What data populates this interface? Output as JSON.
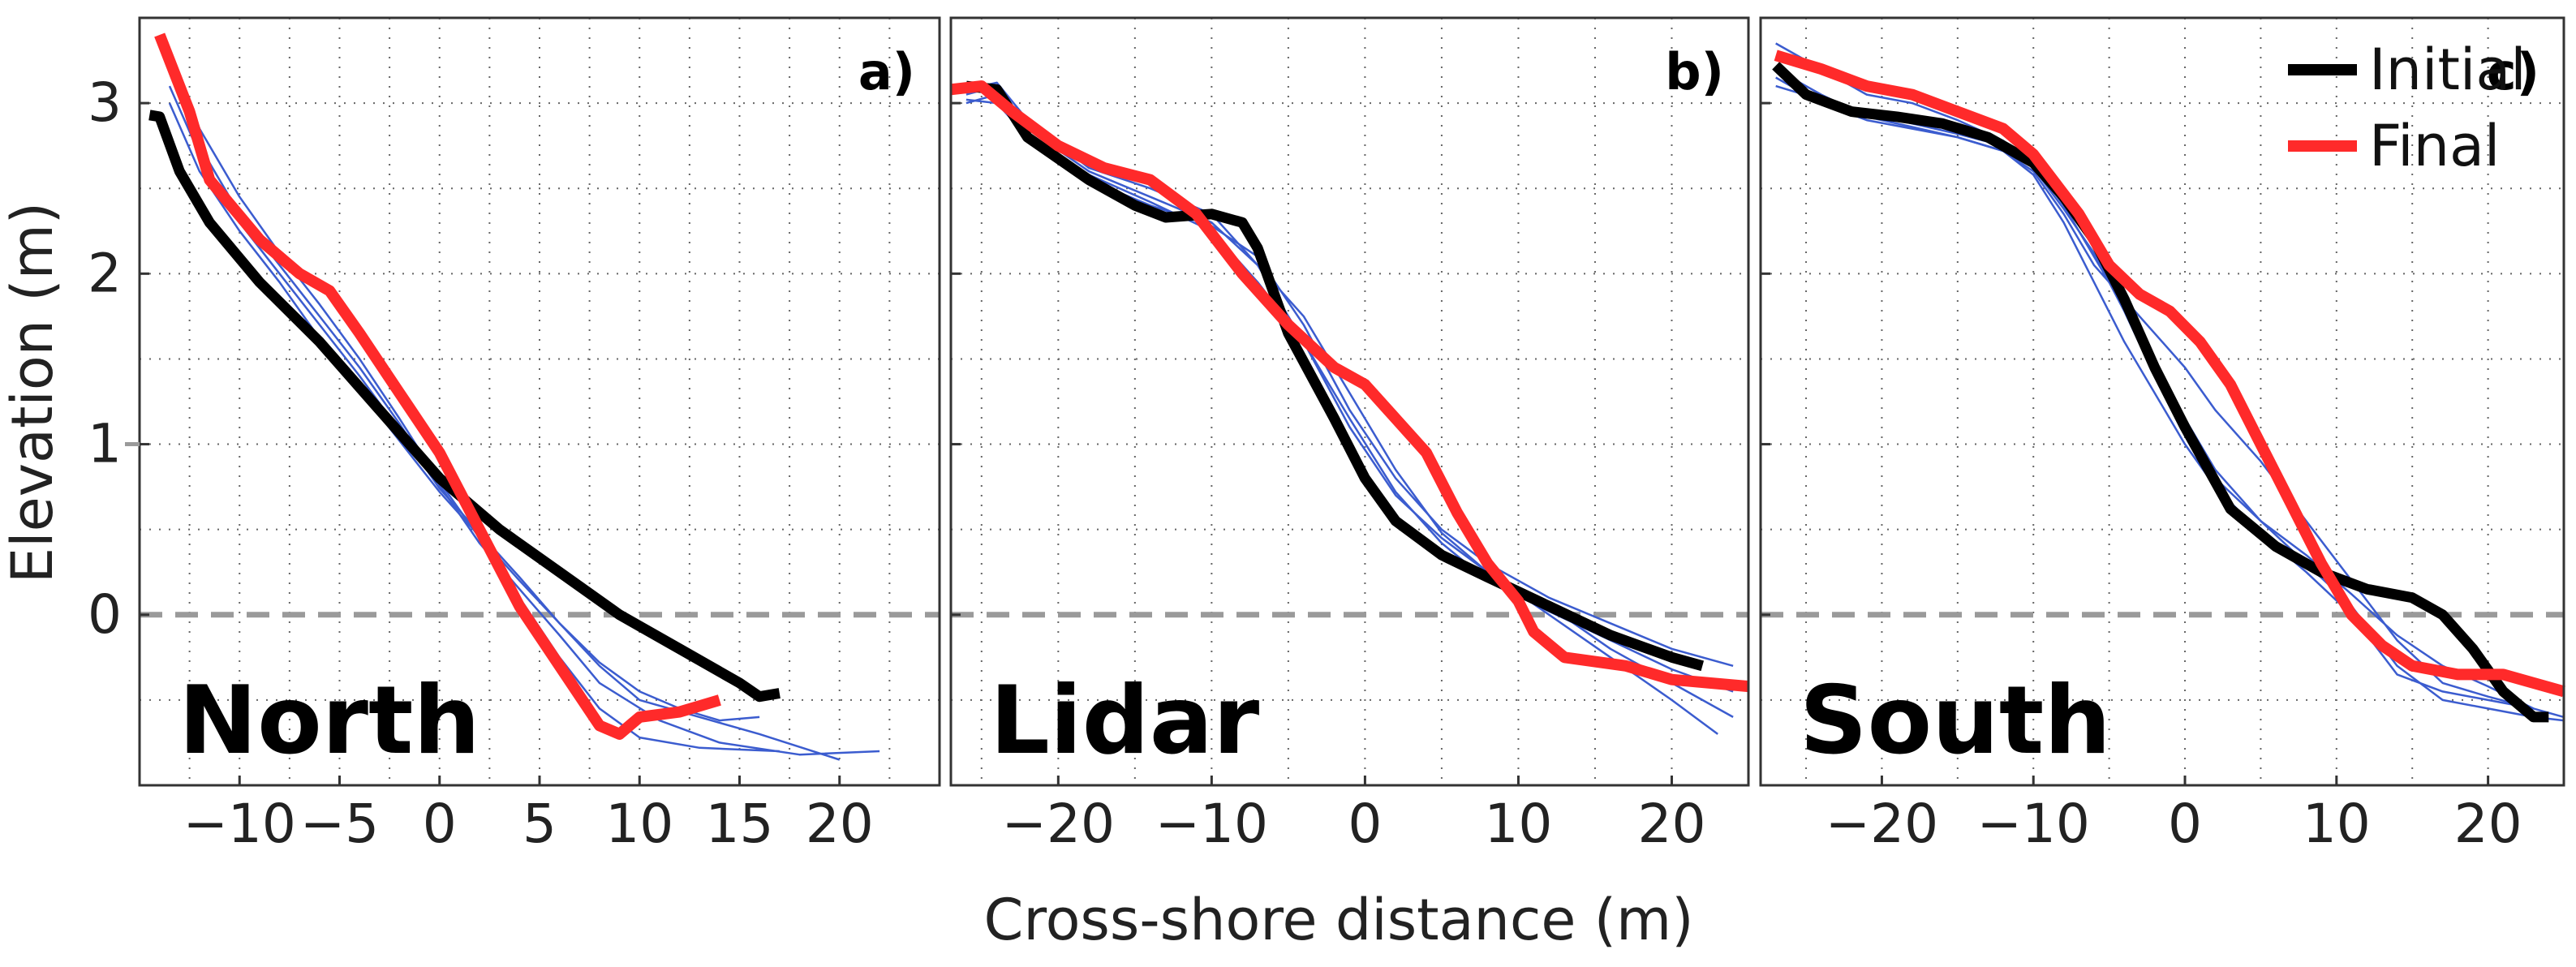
{
  "axis_labels": {
    "ylabel": "Elevation (m)",
    "xlabel": "Cross-shore distance (m)"
  },
  "legend": {
    "items": [
      {
        "label": "Initial",
        "color": "#000000"
      },
      {
        "label": "Final",
        "color": "#ff2a2a"
      }
    ],
    "placement": "top-right"
  },
  "colors": {
    "initial": "#000000",
    "final": "#ff2a2a",
    "intermediate": "#3b5ccf",
    "zero_line": "#9a9a9a"
  },
  "panels": [
    {
      "letter": "a)",
      "name": "North"
    },
    {
      "letter": "b)",
      "name": "Lidar"
    },
    {
      "letter": "c)",
      "name": "South"
    }
  ],
  "chart_data": [
    {
      "type": "line",
      "title": "North",
      "panel_label": "a)",
      "xlabel": "",
      "ylabel": "Elevation (m)",
      "xlim": [
        -15,
        25
      ],
      "ylim": [
        -1,
        3.5
      ],
      "xticks": [
        -10,
        -5,
        0,
        5,
        10,
        15,
        20
      ],
      "xtick_labels": [
        "−10",
        "−5",
        "0",
        "5",
        "10",
        "15",
        "20"
      ],
      "yticks": [
        0,
        1,
        2,
        3
      ],
      "ytick_labels": [
        "0",
        "1",
        "2",
        "3"
      ],
      "grid": true,
      "reference_line": {
        "y": 0,
        "style": "dashed"
      },
      "series": [
        {
          "name": "Initial",
          "role": "initial",
          "x": [
            -14.5,
            -14,
            -13,
            -11.5,
            -9,
            -6,
            -3,
            0,
            3,
            6,
            9,
            12,
            15,
            16,
            17
          ],
          "y": [
            2.93,
            2.92,
            2.6,
            2.3,
            1.95,
            1.6,
            1.2,
            0.8,
            0.5,
            0.25,
            0,
            -0.2,
            -0.4,
            -0.48,
            -0.46
          ]
        },
        {
          "name": "Final",
          "role": "final",
          "x": [
            -14,
            -12.5,
            -11.5,
            -9,
            -7,
            -5.5,
            -4,
            -2,
            0,
            2,
            4,
            6,
            8,
            9,
            10,
            12,
            14
          ],
          "y": [
            3.4,
            2.95,
            2.55,
            2.2,
            2.0,
            1.9,
            1.65,
            1.3,
            0.95,
            0.5,
            0.05,
            -0.3,
            -0.65,
            -0.7,
            -0.6,
            -0.57,
            -0.5
          ]
        },
        {
          "name": "Intermediate 1",
          "role": "intermediate",
          "x": [
            -13.5,
            -12,
            -10,
            -8,
            -6,
            -4,
            -2,
            0,
            2,
            4,
            6,
            8,
            10,
            13,
            17
          ],
          "y": [
            3.3,
            2.85,
            2.45,
            2.12,
            1.82,
            1.5,
            1.15,
            0.78,
            0.45,
            0.1,
            -0.25,
            -0.55,
            -0.72,
            -0.78,
            -0.8
          ]
        },
        {
          "name": "Intermediate 2",
          "role": "intermediate",
          "x": [
            -13.5,
            -12,
            -10,
            -8,
            -6,
            -4,
            -2,
            0,
            2,
            4,
            6,
            8,
            11,
            14,
            18,
            22
          ],
          "y": [
            3.2,
            2.75,
            2.35,
            2.05,
            1.75,
            1.45,
            1.12,
            0.76,
            0.42,
            0.15,
            -0.12,
            -0.4,
            -0.62,
            -0.75,
            -0.82,
            -0.8
          ]
        },
        {
          "name": "Intermediate 3",
          "role": "intermediate",
          "x": [
            -13.5,
            -12,
            -10,
            -8,
            -6,
            -4,
            -2,
            0,
            2,
            4,
            6,
            8,
            10,
            13,
            16,
            20
          ],
          "y": [
            3.1,
            2.7,
            2.3,
            2.0,
            1.7,
            1.4,
            1.08,
            0.74,
            0.48,
            0.22,
            -0.05,
            -0.3,
            -0.5,
            -0.6,
            -0.7,
            -0.85
          ]
        },
        {
          "name": "Intermediate 4",
          "role": "intermediate",
          "x": [
            -13.5,
            -12,
            -10,
            -8,
            -6,
            -4,
            -2,
            0,
            2,
            4,
            6,
            8,
            10,
            12,
            14,
            16
          ],
          "y": [
            3.0,
            2.6,
            2.25,
            1.95,
            1.62,
            1.32,
            1.02,
            0.72,
            0.46,
            0.2,
            -0.05,
            -0.28,
            -0.45,
            -0.55,
            -0.62,
            -0.6
          ]
        }
      ]
    },
    {
      "type": "line",
      "title": "Lidar",
      "panel_label": "b)",
      "xlabel": "Cross-shore distance (m)",
      "ylabel": "",
      "xlim": [
        -27,
        25
      ],
      "ylim": [
        -1,
        3.5
      ],
      "xticks": [
        -20,
        -10,
        0,
        10,
        20
      ],
      "xtick_labels": [
        "−20",
        "−10",
        "0",
        "10",
        "20"
      ],
      "yticks": [
        0,
        1,
        2,
        3
      ],
      "grid": true,
      "reference_line": {
        "y": 0,
        "style": "dashed"
      },
      "series": [
        {
          "name": "Initial",
          "role": "initial",
          "x": [
            -26,
            -24,
            -22,
            -18,
            -15,
            -13,
            -10,
            -8,
            -7,
            -5,
            -2,
            0,
            2,
            5,
            8,
            12,
            16,
            20,
            22
          ],
          "y": [
            3.1,
            3.08,
            2.8,
            2.55,
            2.4,
            2.33,
            2.35,
            2.3,
            2.15,
            1.65,
            1.15,
            0.8,
            0.55,
            0.35,
            0.22,
            0.05,
            -0.12,
            -0.25,
            -0.3
          ]
        },
        {
          "name": "Final",
          "role": "final",
          "x": [
            -27,
            -25,
            -23,
            -20,
            -17,
            -14,
            -11,
            -8,
            -5,
            -2,
            0,
            2,
            4,
            6,
            8,
            10,
            11,
            13,
            17,
            20,
            25
          ],
          "y": [
            3.08,
            3.1,
            2.95,
            2.75,
            2.62,
            2.55,
            2.35,
            2.0,
            1.7,
            1.45,
            1.35,
            1.15,
            0.95,
            0.6,
            0.3,
            0.08,
            -0.1,
            -0.25,
            -0.3,
            -0.38,
            -0.42
          ]
        },
        {
          "name": "Intermediate 1",
          "role": "intermediate",
          "x": [
            -26,
            -24,
            -22,
            -18,
            -14,
            -10,
            -7,
            -4,
            -1,
            2,
            5,
            8,
            12,
            16,
            20,
            24
          ],
          "y": [
            3.05,
            3.1,
            2.85,
            2.6,
            2.45,
            2.3,
            2.05,
            1.6,
            1.1,
            0.7,
            0.45,
            0.25,
            0.05,
            -0.2,
            -0.4,
            -0.6
          ]
        },
        {
          "name": "Intermediate 2",
          "role": "intermediate",
          "x": [
            -26,
            -24,
            -22,
            -18,
            -14,
            -10,
            -7,
            -4,
            -1,
            2,
            5,
            8,
            12,
            16,
            20,
            24
          ],
          "y": [
            3.02,
            3.0,
            2.8,
            2.55,
            2.4,
            2.28,
            2.1,
            1.7,
            1.2,
            0.8,
            0.5,
            0.3,
            0.1,
            -0.05,
            -0.2,
            -0.3
          ]
        },
        {
          "name": "Intermediate 3",
          "role": "intermediate",
          "x": [
            -26,
            -24,
            -22,
            -18,
            -14,
            -10,
            -7,
            -4,
            -1,
            2,
            5,
            8,
            12,
            16,
            20,
            23
          ],
          "y": [
            3.08,
            3.12,
            2.9,
            2.62,
            2.5,
            2.35,
            2.05,
            1.75,
            1.3,
            0.85,
            0.48,
            0.25,
            0.0,
            -0.25,
            -0.5,
            -0.7
          ]
        },
        {
          "name": "Intermediate 4",
          "role": "intermediate",
          "x": [
            -26,
            -24,
            -22,
            -18,
            -14,
            -10,
            -7,
            -4,
            -1,
            2,
            5,
            8,
            12,
            16,
            20,
            24
          ],
          "y": [
            3.0,
            3.05,
            2.82,
            2.58,
            2.42,
            2.25,
            1.95,
            1.6,
            1.15,
            0.72,
            0.42,
            0.2,
            0.02,
            -0.15,
            -0.32,
            -0.45
          ]
        }
      ]
    },
    {
      "type": "line",
      "title": "South",
      "panel_label": "c)",
      "xlabel": "",
      "ylabel": "",
      "xlim": [
        -28,
        25
      ],
      "ylim": [
        -1,
        3.5
      ],
      "xticks": [
        -20,
        -10,
        0,
        10,
        20
      ],
      "xtick_labels": [
        "−20",
        "−10",
        "0",
        "10",
        "20"
      ],
      "yticks": [
        0,
        1,
        2,
        3
      ],
      "grid": true,
      "reference_line": {
        "y": 0,
        "style": "dashed"
      },
      "series": [
        {
          "name": "Initial",
          "role": "initial",
          "x": [
            -27,
            -25,
            -22,
            -19,
            -16,
            -13,
            -10,
            -8,
            -6,
            -4,
            -2,
            0,
            3,
            6,
            9,
            12,
            15,
            17,
            19,
            21,
            23,
            24
          ],
          "y": [
            3.22,
            3.05,
            2.95,
            2.92,
            2.88,
            2.8,
            2.65,
            2.45,
            2.2,
            1.85,
            1.45,
            1.1,
            0.62,
            0.4,
            0.25,
            0.15,
            0.1,
            0.0,
            -0.2,
            -0.45,
            -0.6,
            -0.6
          ]
        },
        {
          "name": "Final",
          "role": "final",
          "x": [
            -27,
            -24,
            -21,
            -18,
            -15,
            -12,
            -10,
            -7,
            -5,
            -3,
            -1,
            1,
            3,
            5,
            7,
            9,
            11,
            13,
            15,
            18,
            21,
            23,
            25
          ],
          "y": [
            3.28,
            3.2,
            3.1,
            3.05,
            2.95,
            2.85,
            2.7,
            2.35,
            2.05,
            1.88,
            1.78,
            1.6,
            1.35,
            1.0,
            0.65,
            0.3,
            0.0,
            -0.18,
            -0.3,
            -0.35,
            -0.35,
            -0.4,
            -0.45
          ]
        },
        {
          "name": "Intermediate 1",
          "role": "intermediate",
          "x": [
            -27,
            -24,
            -21,
            -18,
            -15,
            -12,
            -10,
            -8,
            -6,
            -4,
            -2,
            0,
            2,
            5,
            8,
            11,
            14,
            17,
            20,
            23,
            25
          ],
          "y": [
            3.35,
            3.2,
            3.05,
            3.0,
            2.9,
            2.78,
            2.65,
            2.4,
            2.1,
            1.8,
            1.45,
            1.15,
            0.85,
            0.55,
            0.3,
            0.05,
            -0.3,
            -0.5,
            -0.55,
            -0.6,
            -0.62
          ]
        },
        {
          "name": "Intermediate 2",
          "role": "intermediate",
          "x": [
            -27,
            -24,
            -21,
            -18,
            -15,
            -12,
            -10,
            -8,
            -6,
            -4,
            -2,
            0,
            2,
            5,
            8,
            11,
            14,
            17,
            20,
            23,
            25
          ],
          "y": [
            3.15,
            3.0,
            2.9,
            2.85,
            2.8,
            2.72,
            2.6,
            2.35,
            2.05,
            1.85,
            1.65,
            1.45,
            1.2,
            0.9,
            0.55,
            0.2,
            -0.15,
            -0.4,
            -0.48,
            -0.55,
            -0.6
          ]
        },
        {
          "name": "Intermediate 3",
          "role": "intermediate",
          "x": [
            -27,
            -24,
            -21,
            -18,
            -15,
            -12,
            -10,
            -8,
            -6,
            -4,
            -2,
            0,
            2,
            5,
            8,
            11,
            14,
            17,
            20,
            23
          ],
          "y": [
            3.2,
            3.05,
            2.92,
            2.86,
            2.8,
            2.72,
            2.58,
            2.3,
            1.95,
            1.6,
            1.3,
            1.0,
            0.75,
            0.48,
            0.25,
            0.0,
            -0.35,
            -0.45,
            -0.5,
            -0.55
          ]
        },
        {
          "name": "Intermediate 4",
          "role": "intermediate",
          "x": [
            -27,
            -24,
            -21,
            -18,
            -15,
            -12,
            -10,
            -8,
            -6,
            -4,
            -2,
            0,
            2,
            5,
            8,
            11,
            14,
            17,
            20,
            23
          ],
          "y": [
            3.1,
            3.02,
            2.95,
            2.88,
            2.82,
            2.75,
            2.62,
            2.38,
            2.12,
            1.78,
            1.4,
            1.05,
            0.8,
            0.55,
            0.35,
            0.12,
            -0.12,
            -0.3,
            -0.42,
            -0.55
          ]
        }
      ]
    }
  ]
}
